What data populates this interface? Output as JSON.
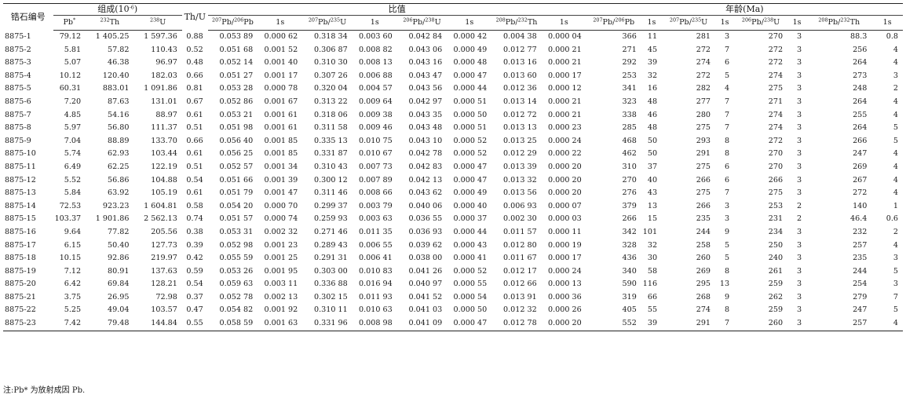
{
  "header": {
    "sample_label": "锆石编号",
    "composition_label": "组成(10",
    "composition_exp": "-6",
    "composition_close": ")",
    "thu_label": "Th/U",
    "ratio_label": "比值",
    "age_label": "年龄(Ma)",
    "pb_label": "Pb",
    "pb_star": "*",
    "th232_mass": "232",
    "th_sym": "Th",
    "u238_mass": "238",
    "u_sym": "U",
    "err_label": "1s",
    "m207": "207",
    "m206": "206",
    "m235": "235",
    "m238": "238",
    "m208": "208",
    "m232": "232",
    "pb_sym": "Pb",
    "slash": "/"
  },
  "rows": [
    [
      "8875-1",
      "79.12",
      "1 405.25",
      "1 597.36",
      "0.88",
      "0.053 89",
      "0.000 62",
      "0.318 34",
      "0.003 60",
      "0.042 84",
      "0.000 42",
      "0.004 38",
      "0.000 04",
      "366",
      "11",
      "281",
      "3",
      "270",
      "3",
      "88.3",
      "0.8"
    ],
    [
      "8875-2",
      "5.81",
      "57.82",
      "110.43",
      "0.52",
      "0.051 68",
      "0.001 52",
      "0.306 87",
      "0.008 82",
      "0.043 06",
      "0.000 49",
      "0.012 77",
      "0.000 21",
      "271",
      "45",
      "272",
      "7",
      "272",
      "3",
      "256",
      "4"
    ],
    [
      "8875-3",
      "5.07",
      "46.38",
      "96.97",
      "0.48",
      "0.052 14",
      "0.001 40",
      "0.310 30",
      "0.008 13",
      "0.043 16",
      "0.000 48",
      "0.013 16",
      "0.000 21",
      "292",
      "39",
      "274",
      "6",
      "272",
      "3",
      "264",
      "4"
    ],
    [
      "8875-4",
      "10.12",
      "120.40",
      "182.03",
      "0.66",
      "0.051 27",
      "0.001 17",
      "0.307 26",
      "0.006 88",
      "0.043 47",
      "0.000 47",
      "0.013 60",
      "0.000 17",
      "253",
      "32",
      "272",
      "5",
      "274",
      "3",
      "273",
      "3"
    ],
    [
      "8875-5",
      "60.31",
      "883.01",
      "1 091.86",
      "0.81",
      "0.053 28",
      "0.000 78",
      "0.320 04",
      "0.004 57",
      "0.043 56",
      "0.000 44",
      "0.012 36",
      "0.000 12",
      "341",
      "16",
      "282",
      "4",
      "275",
      "3",
      "248",
      "2"
    ],
    [
      "8875-6",
      "7.20",
      "87.63",
      "131.01",
      "0.67",
      "0.052 86",
      "0.001 67",
      "0.313 22",
      "0.009 64",
      "0.042 97",
      "0.000 51",
      "0.013 14",
      "0.000 21",
      "323",
      "48",
      "277",
      "7",
      "271",
      "3",
      "264",
      "4"
    ],
    [
      "8875-7",
      "4.85",
      "54.16",
      "88.97",
      "0.61",
      "0.053 21",
      "0.001 61",
      "0.318 06",
      "0.009 38",
      "0.043 35",
      "0.000 50",
      "0.012 72",
      "0.000 21",
      "338",
      "46",
      "280",
      "7",
      "274",
      "3",
      "255",
      "4"
    ],
    [
      "8875-8",
      "5.97",
      "56.80",
      "111.37",
      "0.51",
      "0.051 98",
      "0.001 61",
      "0.311 58",
      "0.009 46",
      "0.043 48",
      "0.000 51",
      "0.013 13",
      "0.000 23",
      "285",
      "48",
      "275",
      "7",
      "274",
      "3",
      "264",
      "5"
    ],
    [
      "8875-9",
      "7.04",
      "88.89",
      "133.70",
      "0.66",
      "0.056 40",
      "0.001 85",
      "0.335 13",
      "0.010 75",
      "0.043 10",
      "0.000 52",
      "0.013 25",
      "0.000 24",
      "468",
      "50",
      "293",
      "8",
      "272",
      "3",
      "266",
      "5"
    ],
    [
      "8875-10",
      "5.74",
      "62.93",
      "103.44",
      "0.61",
      "0.056 25",
      "0.001 85",
      "0.331 87",
      "0.010 67",
      "0.042 78",
      "0.000 52",
      "0.012 29",
      "0.000 22",
      "462",
      "50",
      "291",
      "8",
      "270",
      "3",
      "247",
      "4"
    ],
    [
      "8875-11",
      "6.49",
      "62.25",
      "122.19",
      "0.51",
      "0.052 57",
      "0.001 34",
      "0.310 43",
      "0.007 73",
      "0.042 83",
      "0.000 47",
      "0.013 39",
      "0.000 20",
      "310",
      "37",
      "275",
      "6",
      "270",
      "3",
      "269",
      "4"
    ],
    [
      "8875-12",
      "5.52",
      "56.86",
      "104.88",
      "0.54",
      "0.051 66",
      "0.001 39",
      "0.300 12",
      "0.007 89",
      "0.042 13",
      "0.000 47",
      "0.013 32",
      "0.000 20",
      "270",
      "40",
      "266",
      "6",
      "266",
      "3",
      "267",
      "4"
    ],
    [
      "8875-13",
      "5.84",
      "63.92",
      "105.19",
      "0.61",
      "0.051 79",
      "0.001 47",
      "0.311 46",
      "0.008 66",
      "0.043 62",
      "0.000 49",
      "0.013 56",
      "0.000 20",
      "276",
      "43",
      "275",
      "7",
      "275",
      "3",
      "272",
      "4"
    ],
    [
      "8875-14",
      "72.53",
      "923.23",
      "1 604.81",
      "0.58",
      "0.054 20",
      "0.000 70",
      "0.299 37",
      "0.003 79",
      "0.040 06",
      "0.000 40",
      "0.006 93",
      "0.000 07",
      "379",
      "13",
      "266",
      "3",
      "253",
      "2",
      "140",
      "1"
    ],
    [
      "8875-15",
      "103.37",
      "1 901.86",
      "2 562.13",
      "0.74",
      "0.051 57",
      "0.000 74",
      "0.259 93",
      "0.003 63",
      "0.036 55",
      "0.000 37",
      "0.002 30",
      "0.000 03",
      "266",
      "15",
      "235",
      "3",
      "231",
      "2",
      "46.4",
      "0.6"
    ],
    [
      "8875-16",
      "9.64",
      "77.82",
      "205.56",
      "0.38",
      "0.053 31",
      "0.002 32",
      "0.271 46",
      "0.011 35",
      "0.036 93",
      "0.000 44",
      "0.011 57",
      "0.000 11",
      "342",
      "101",
      "244",
      "9",
      "234",
      "3",
      "232",
      "2"
    ],
    [
      "8875-17",
      "6.15",
      "50.40",
      "127.73",
      "0.39",
      "0.052 98",
      "0.001 23",
      "0.289 43",
      "0.006 55",
      "0.039 62",
      "0.000 43",
      "0.012 80",
      "0.000 19",
      "328",
      "32",
      "258",
      "5",
      "250",
      "3",
      "257",
      "4"
    ],
    [
      "8875-18",
      "10.15",
      "92.86",
      "219.97",
      "0.42",
      "0.055 59",
      "0.001 25",
      "0.291 31",
      "0.006 41",
      "0.038 00",
      "0.000 41",
      "0.011 67",
      "0.000 17",
      "436",
      "30",
      "260",
      "5",
      "240",
      "3",
      "235",
      "3"
    ],
    [
      "8875-19",
      "7.12",
      "80.91",
      "137.63",
      "0.59",
      "0.053 26",
      "0.001 95",
      "0.303 00",
      "0.010 83",
      "0.041 26",
      "0.000 52",
      "0.012 17",
      "0.000 24",
      "340",
      "58",
      "269",
      "8",
      "261",
      "3",
      "244",
      "5"
    ],
    [
      "8875-20",
      "6.42",
      "69.84",
      "128.21",
      "0.54",
      "0.059 63",
      "0.003 11",
      "0.336 88",
      "0.016 94",
      "0.040 97",
      "0.000 55",
      "0.012 66",
      "0.000 13",
      "590",
      "116",
      "295",
      "13",
      "259",
      "3",
      "254",
      "3"
    ],
    [
      "8875-21",
      "3.75",
      "26.95",
      "72.98",
      "0.37",
      "0.052 78",
      "0.002 13",
      "0.302 15",
      "0.011 93",
      "0.041 52",
      "0.000 54",
      "0.013 91",
      "0.000 36",
      "319",
      "66",
      "268",
      "9",
      "262",
      "3",
      "279",
      "7"
    ],
    [
      "8875-22",
      "5.25",
      "49.04",
      "103.57",
      "0.47",
      "0.054 82",
      "0.001 92",
      "0.310 11",
      "0.010 63",
      "0.041 03",
      "0.000 50",
      "0.012 32",
      "0.000 26",
      "405",
      "55",
      "274",
      "8",
      "259",
      "3",
      "247",
      "5"
    ],
    [
      "8875-23",
      "7.42",
      "79.48",
      "144.84",
      "0.55",
      "0.058 59",
      "0.001 63",
      "0.331 96",
      "0.008 98",
      "0.041 09",
      "0.000 47",
      "0.012 78",
      "0.000 20",
      "552",
      "39",
      "291",
      "7",
      "260",
      "3",
      "257",
      "4"
    ]
  ],
  "note": "注:Pb* 为放射成因 Pb."
}
